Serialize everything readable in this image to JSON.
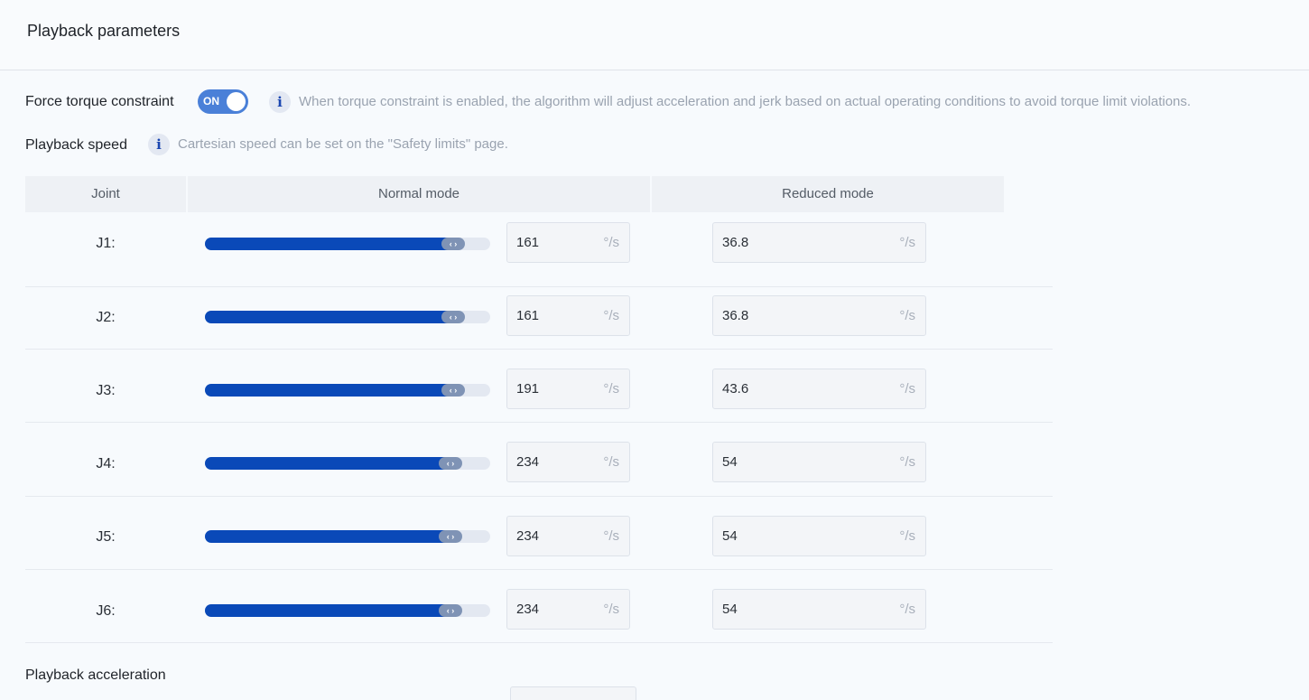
{
  "header": {
    "title": "Playback parameters"
  },
  "force_torque": {
    "label": "Force torque constraint",
    "toggle_text": "ON",
    "enabled": true,
    "info_glyph": "i",
    "hint": "When torque constraint is enabled, the algorithm will adjust acceleration and jerk based on actual operating conditions to avoid torque limit violations."
  },
  "playback_speed": {
    "label": "Playback speed",
    "info_glyph": "i",
    "hint": "Cartesian speed can be set on the \"Safety limits\" page."
  },
  "table": {
    "headers": {
      "joint": "Joint",
      "normal": "Normal mode",
      "reduced": "Reduced mode"
    },
    "thumb_glyph": "‹ ›",
    "rows": [
      {
        "joint": "J1:",
        "normal": "161",
        "normal_unit": "°/s",
        "reduced": "36.8",
        "reduced_unit": "°/s",
        "slider_fraction": 0.87
      },
      {
        "joint": "J2:",
        "normal": "161",
        "normal_unit": "°/s",
        "reduced": "36.8",
        "reduced_unit": "°/s",
        "slider_fraction": 0.87
      },
      {
        "joint": "J3:",
        "normal": "191",
        "normal_unit": "°/s",
        "reduced": "43.6",
        "reduced_unit": "°/s",
        "slider_fraction": 0.87
      },
      {
        "joint": "J4:",
        "normal": "234",
        "normal_unit": "°/s",
        "reduced": "54",
        "reduced_unit": "°/s",
        "slider_fraction": 0.86
      },
      {
        "joint": "J5:",
        "normal": "234",
        "normal_unit": "°/s",
        "reduced": "54",
        "reduced_unit": "°/s",
        "slider_fraction": 0.86
      },
      {
        "joint": "J6:",
        "normal": "234",
        "normal_unit": "°/s",
        "reduced": "54",
        "reduced_unit": "°/s",
        "slider_fraction": 0.86
      }
    ]
  },
  "playback_acceleration": {
    "label": "Playback acceleration"
  },
  "colors": {
    "accent": "#0a49b8",
    "toggle_on": "#4a80d8",
    "hint_text": "#9aa3b0"
  }
}
